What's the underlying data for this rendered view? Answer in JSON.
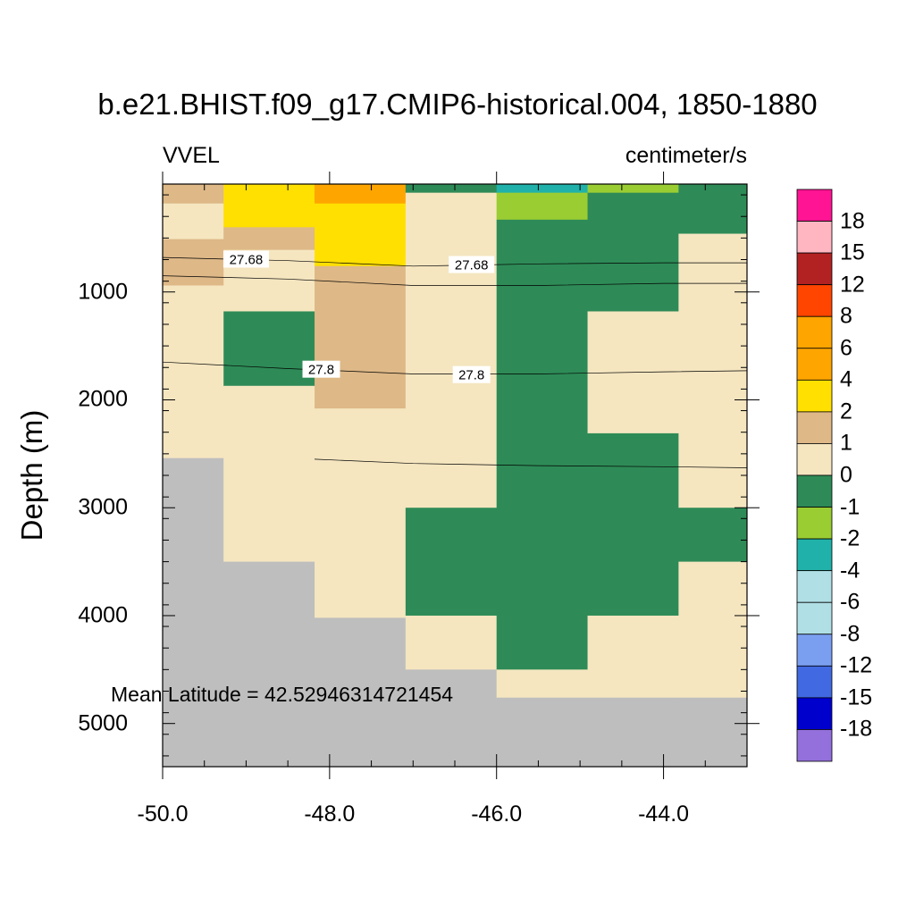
{
  "colors": {
    "land": "#bebebe",
    "contour_line": "#000000",
    "label_bg": "#ffffff"
  },
  "chart_data": {
    "type": "heatmap",
    "title": "b.e21.BHIST.f09_g17.CMIP6-historical.004, 1850-1880",
    "left_string": "VVEL",
    "right_string": "centimeter/s",
    "ylabel": "Depth (m)",
    "xlabel": "",
    "annotation": "Mean Latitude = 42.52946314721454",
    "xlim": [
      -50.0,
      -43.0
    ],
    "ylim": [
      5400,
      0
    ],
    "x_ticks": [
      -50.0,
      -48.0,
      -46.0,
      -44.0
    ],
    "x_tick_labels": [
      "-50.0",
      "-48.0",
      "-46.0",
      "-44.0"
    ],
    "y_ticks": [
      1000,
      2000,
      3000,
      4000,
      5000
    ],
    "y_tick_labels": [
      "1000",
      "2000",
      "3000",
      "4000",
      "5000"
    ],
    "colorbar": {
      "labels": [
        "18",
        "15",
        "12",
        "8",
        "6",
        "4",
        "2",
        "1",
        "0",
        "-1",
        "-2",
        "-4",
        "-6",
        "-8",
        "-12",
        "-15",
        "-18"
      ],
      "colors_top_to_bottom": [
        "#ff1493",
        "#ffb6c1",
        "#b22222",
        "#ff4500",
        "#ffa500",
        "#ffa500",
        "#ffe000",
        "#deb887",
        "#f5e6c0",
        "#2e8b57",
        "#9acd32",
        "#20b2aa",
        "#b0e0e6",
        "#b0e0e6",
        "#7b9ff0",
        "#4169e1",
        "#0000cd",
        "#9370db"
      ]
    },
    "cells": [
      {
        "x": [
          -50.0,
          -49.27
        ],
        "y": [
          0,
          80
        ],
        "value": 1
      },
      {
        "x": [
          -50.0,
          -49.27
        ],
        "y": [
          80,
          180
        ],
        "value": 1.5
      },
      {
        "x": [
          -50.0,
          -49.27
        ],
        "y": [
          180,
          510
        ],
        "value": 0.5
      },
      {
        "x": [
          -50.0,
          -49.27
        ],
        "y": [
          510,
          940
        ],
        "value": 1.5
      },
      {
        "x": [
          -50.0,
          -49.27
        ],
        "y": [
          940,
          2540
        ],
        "value": 0.5
      },
      {
        "x": [
          -50.0,
          -49.27
        ],
        "y": [
          2540,
          5400
        ],
        "value": "land"
      },
      {
        "x": [
          -49.27,
          -48.18
        ],
        "y": [
          0,
          400
        ],
        "value": 3
      },
      {
        "x": [
          -49.27,
          -48.18
        ],
        "y": [
          400,
          610
        ],
        "value": 1.5
      },
      {
        "x": [
          -49.27,
          -48.18
        ],
        "y": [
          610,
          1180
        ],
        "value": 0.5
      },
      {
        "x": [
          -49.27,
          -48.18
        ],
        "y": [
          1180,
          1870
        ],
        "value": -0.5
      },
      {
        "x": [
          -49.27,
          -48.18
        ],
        "y": [
          1870,
          3500
        ],
        "value": 0.5
      },
      {
        "x": [
          -49.27,
          -48.18
        ],
        "y": [
          3500,
          5400
        ],
        "value": "land"
      },
      {
        "x": [
          -48.18,
          -47.09
        ],
        "y": [
          0,
          180
        ],
        "value": 5
      },
      {
        "x": [
          -48.18,
          -47.09
        ],
        "y": [
          180,
          760
        ],
        "value": 3
      },
      {
        "x": [
          -48.18,
          -47.09
        ],
        "y": [
          760,
          2080
        ],
        "value": 1.5
      },
      {
        "x": [
          -48.18,
          -47.09
        ],
        "y": [
          2080,
          4020
        ],
        "value": 0.5
      },
      {
        "x": [
          -48.18,
          -47.09
        ],
        "y": [
          4020,
          5400
        ],
        "value": "land"
      },
      {
        "x": [
          -47.09,
          -46.0
        ],
        "y": [
          0,
          80
        ],
        "value": -0.5
      },
      {
        "x": [
          -47.09,
          -46.0
        ],
        "y": [
          80,
          3000
        ],
        "value": 0.5
      },
      {
        "x": [
          -47.09,
          -46.0
        ],
        "y": [
          3000,
          4000
        ],
        "value": -0.5
      },
      {
        "x": [
          -47.09,
          -46.0
        ],
        "y": [
          4000,
          4500
        ],
        "value": 0.5
      },
      {
        "x": [
          -47.09,
          -46.0
        ],
        "y": [
          4500,
          5400
        ],
        "value": "land"
      },
      {
        "x": [
          -46.0,
          -44.91
        ],
        "y": [
          0,
          80
        ],
        "value": -3
      },
      {
        "x": [
          -46.0,
          -44.91
        ],
        "y": [
          80,
          330
        ],
        "value": -1.5
      },
      {
        "x": [
          -46.0,
          -44.91
        ],
        "y": [
          330,
          4500
        ],
        "value": -0.5
      },
      {
        "x": [
          -46.0,
          -44.91
        ],
        "y": [
          4500,
          4760
        ],
        "value": 0.5
      },
      {
        "x": [
          -46.0,
          -44.91
        ],
        "y": [
          4760,
          5400
        ],
        "value": "land"
      },
      {
        "x": [
          -44.91,
          -43.82
        ],
        "y": [
          0,
          80
        ],
        "value": -1.5
      },
      {
        "x": [
          -44.91,
          -43.82
        ],
        "y": [
          80,
          1180
        ],
        "value": -0.5
      },
      {
        "x": [
          -44.91,
          -43.82
        ],
        "y": [
          1180,
          2310
        ],
        "value": 0.5
      },
      {
        "x": [
          -44.91,
          -43.82
        ],
        "y": [
          2310,
          4000
        ],
        "value": -0.5
      },
      {
        "x": [
          -44.91,
          -43.82
        ],
        "y": [
          4000,
          4760
        ],
        "value": 0.5
      },
      {
        "x": [
          -44.91,
          -43.82
        ],
        "y": [
          4760,
          5400
        ],
        "value": "land"
      },
      {
        "x": [
          -43.82,
          -43.0
        ],
        "y": [
          0,
          460
        ],
        "value": -0.5
      },
      {
        "x": [
          -43.82,
          -43.0
        ],
        "y": [
          460,
          3000
        ],
        "value": 0.5
      },
      {
        "x": [
          -43.82,
          -43.0
        ],
        "y": [
          3000,
          3500
        ],
        "value": -0.5
      },
      {
        "x": [
          -43.82,
          -43.0
        ],
        "y": [
          3500,
          4760
        ],
        "value": 0.5
      },
      {
        "x": [
          -43.82,
          -43.0
        ],
        "y": [
          4760,
          5400
        ],
        "value": "land"
      }
    ],
    "contours": [
      {
        "level": "27.68",
        "points": [
          [
            -50.0,
            680
          ],
          [
            -48.5,
            710
          ],
          [
            -47.0,
            760
          ],
          [
            -45.5,
            740
          ],
          [
            -44.0,
            730
          ],
          [
            -43.0,
            730
          ]
        ],
        "label_positions": [
          [
            -49.0,
            700
          ],
          [
            -46.3,
            750
          ]
        ]
      },
      {
        "level": "",
        "points": [
          [
            -50.0,
            850
          ],
          [
            -48.5,
            880
          ],
          [
            -47.0,
            940
          ],
          [
            -45.5,
            940
          ],
          [
            -44.0,
            920
          ],
          [
            -43.0,
            920
          ]
        ],
        "label_positions": []
      },
      {
        "level": "27.8",
        "points": [
          [
            -50.0,
            1650
          ],
          [
            -48.5,
            1710
          ],
          [
            -47.0,
            1760
          ],
          [
            -45.5,
            1760
          ],
          [
            -44.0,
            1740
          ],
          [
            -43.0,
            1730
          ]
        ],
        "label_positions": [
          [
            -48.1,
            1720
          ],
          [
            -46.3,
            1770
          ]
        ]
      },
      {
        "level": "",
        "points": [
          [
            -48.18,
            2550
          ],
          [
            -47.0,
            2590
          ],
          [
            -45.5,
            2610
          ],
          [
            -44.0,
            2620
          ],
          [
            -43.0,
            2630
          ]
        ],
        "label_positions": []
      }
    ]
  }
}
